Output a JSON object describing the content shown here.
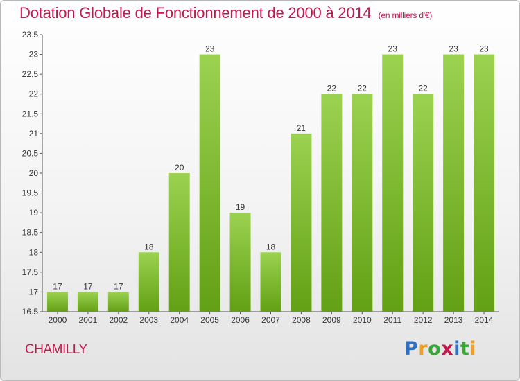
{
  "chart_data": {
    "type": "bar",
    "title": "Dotation Globale de Fonctionnement de 2000 à 2014",
    "unit_label": "(en milliers d'€)",
    "xlabel": "",
    "ylabel": "",
    "categories": [
      "2000",
      "2001",
      "2002",
      "2003",
      "2004",
      "2005",
      "2006",
      "2007",
      "2008",
      "2009",
      "2010",
      "2011",
      "2012",
      "2013",
      "2014"
    ],
    "values": [
      17,
      17,
      17,
      18,
      20,
      23,
      19,
      18,
      21,
      22,
      22,
      23,
      22,
      23,
      23
    ],
    "data_labels": [
      "17",
      "17",
      "17",
      "18",
      "20",
      "23",
      "19",
      "18",
      "21",
      "22",
      "22",
      "23",
      "22",
      "23",
      "23"
    ],
    "ylim": [
      16.5,
      23.5
    ],
    "yticks": [
      16.5,
      17,
      17.5,
      18,
      18.5,
      19,
      19.5,
      20,
      20.5,
      21,
      21.5,
      22,
      22.5,
      23,
      23.5
    ],
    "ytick_labels": [
      "16.5",
      "17",
      "17.5",
      "18",
      "18.5",
      "19",
      "19.5",
      "20",
      "20.5",
      "21",
      "21.5",
      "22",
      "22.5",
      "23",
      "23.5"
    ],
    "grid": false,
    "legend": "none",
    "colors": {
      "bar_top": "#9bd250",
      "bar_bottom": "#62a015",
      "title": "#c4164d",
      "axis": "#555555"
    }
  },
  "footer": {
    "commune": "CHAMILLY",
    "brand": "Proxiti",
    "brand_letters": [
      "P",
      "r",
      "o",
      "x",
      "i",
      "t",
      "i"
    ],
    "brand_colors": [
      "#2f6fc4",
      "#f0a020",
      "#37a637",
      "#c4164d",
      "#2f6fc4",
      "#37a637",
      "#f0a020"
    ]
  }
}
